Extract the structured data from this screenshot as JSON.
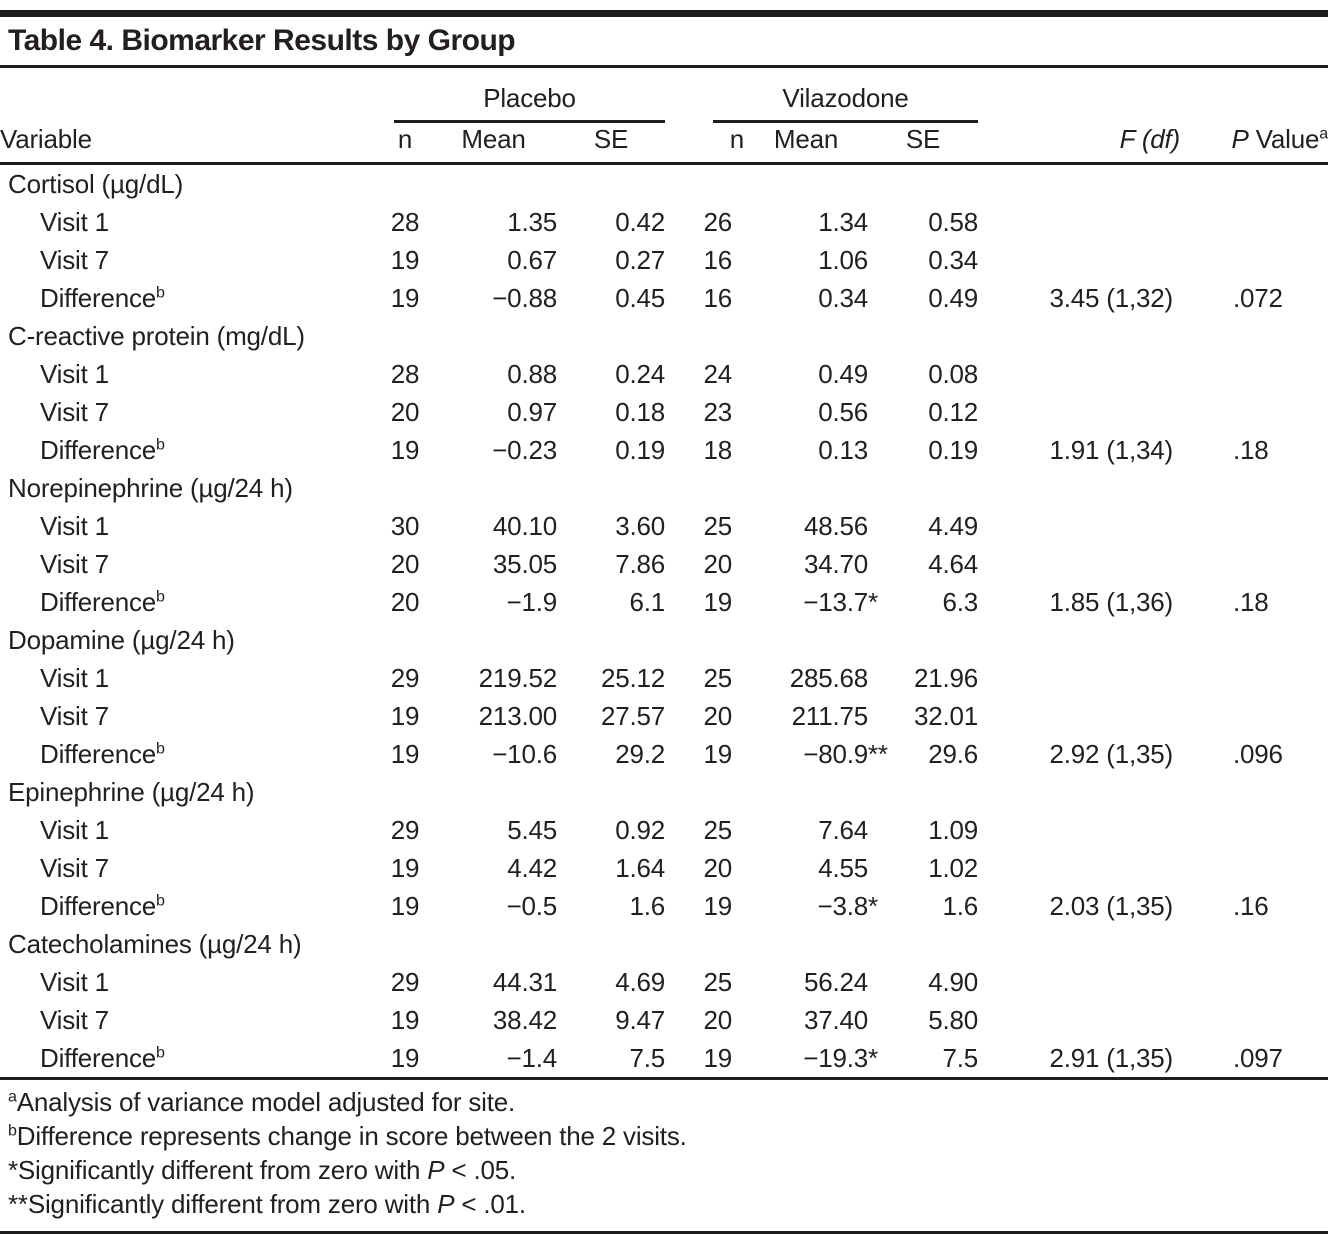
{
  "title": "Table 4. Biomarker Results by Group",
  "columns": {
    "variable": "Variable",
    "group1": "Placebo",
    "group2": "Vilazodone",
    "n": "n",
    "mean": "Mean",
    "se": "SE",
    "f_df": "F (df)",
    "p_label": "P",
    "p_rest": " Value",
    "p_sup": "a"
  },
  "sections": [
    {
      "label": "Cortisol (µg/dL)",
      "rows": [
        {
          "label": "Visit 1",
          "sup": "",
          "pn": "28",
          "pmean": "1.35",
          "pse": "0.42",
          "vn": "26",
          "vmean": "1.34",
          "vast": "",
          "vse": "0.58",
          "f": "",
          "p": ""
        },
        {
          "label": "Visit 7",
          "sup": "",
          "pn": "19",
          "pmean": "0.67",
          "pse": "0.27",
          "vn": "16",
          "vmean": "1.06",
          "vast": "",
          "vse": "0.34",
          "f": "",
          "p": ""
        },
        {
          "label": "Difference",
          "sup": "b",
          "pn": "19",
          "pmean": "−0.88",
          "pse": "0.45",
          "vn": "16",
          "vmean": "0.34",
          "vast": "",
          "vse": "0.49",
          "f": "3.45 (1,32)",
          "p": ".072"
        }
      ]
    },
    {
      "label": "C-reactive protein (mg/dL)",
      "rows": [
        {
          "label": "Visit 1",
          "sup": "",
          "pn": "28",
          "pmean": "0.88",
          "pse": "0.24",
          "vn": "24",
          "vmean": "0.49",
          "vast": "",
          "vse": "0.08",
          "f": "",
          "p": ""
        },
        {
          "label": "Visit 7",
          "sup": "",
          "pn": "20",
          "pmean": "0.97",
          "pse": "0.18",
          "vn": "23",
          "vmean": "0.56",
          "vast": "",
          "vse": "0.12",
          "f": "",
          "p": ""
        },
        {
          "label": "Difference",
          "sup": "b",
          "pn": "19",
          "pmean": "−0.23",
          "pse": "0.19",
          "vn": "18",
          "vmean": "0.13",
          "vast": "",
          "vse": "0.19",
          "f": "1.91 (1,34)",
          "p": ".18"
        }
      ]
    },
    {
      "label": "Norepinephrine (µg/24 h)",
      "rows": [
        {
          "label": "Visit 1",
          "sup": "",
          "pn": "30",
          "pmean": "40.10",
          "pse": "3.60",
          "vn": "25",
          "vmean": "48.56",
          "vast": "",
          "vse": "4.49",
          "f": "",
          "p": ""
        },
        {
          "label": "Visit 7",
          "sup": "",
          "pn": "20",
          "pmean": "35.05",
          "pse": "7.86",
          "vn": "20",
          "vmean": "34.70",
          "vast": "",
          "vse": "4.64",
          "f": "",
          "p": ""
        },
        {
          "label": "Difference",
          "sup": "b",
          "pn": "20",
          "pmean": "−1.9",
          "pse": "6.1",
          "vn": "19",
          "vmean": "−13.7",
          "vast": "*",
          "vse": "6.3",
          "f": "1.85 (1,36)",
          "p": ".18"
        }
      ]
    },
    {
      "label": "Dopamine (µg/24 h)",
      "rows": [
        {
          "label": "Visit 1",
          "sup": "",
          "pn": "29",
          "pmean": "219.52",
          "pse": "25.12",
          "vn": "25",
          "vmean": "285.68",
          "vast": "",
          "vse": "21.96",
          "f": "",
          "p": ""
        },
        {
          "label": "Visit 7",
          "sup": "",
          "pn": "19",
          "pmean": "213.00",
          "pse": "27.57",
          "vn": "20",
          "vmean": "211.75",
          "vast": "",
          "vse": "32.01",
          "f": "",
          "p": ""
        },
        {
          "label": "Difference",
          "sup": "b",
          "pn": "19",
          "pmean": "−10.6",
          "pse": "29.2",
          "vn": "19",
          "vmean": "−80.9",
          "vast": "**",
          "vse": "29.6",
          "f": "2.92 (1,35)",
          "p": ".096"
        }
      ]
    },
    {
      "label": "Epinephrine (µg/24 h)",
      "rows": [
        {
          "label": "Visit 1",
          "sup": "",
          "pn": "29",
          "pmean": "5.45",
          "pse": "0.92",
          "vn": "25",
          "vmean": "7.64",
          "vast": "",
          "vse": "1.09",
          "f": "",
          "p": ""
        },
        {
          "label": "Visit 7",
          "sup": "",
          "pn": "19",
          "pmean": "4.42",
          "pse": "1.64",
          "vn": "20",
          "vmean": "4.55",
          "vast": "",
          "vse": "1.02",
          "f": "",
          "p": ""
        },
        {
          "label": "Difference",
          "sup": "b",
          "pn": "19",
          "pmean": "−0.5",
          "pse": "1.6",
          "vn": "19",
          "vmean": "−3.8",
          "vast": "*",
          "vse": "1.6",
          "f": "2.03 (1,35)",
          "p": ".16"
        }
      ]
    },
    {
      "label": "Catecholamines (µg/24 h)",
      "rows": [
        {
          "label": "Visit 1",
          "sup": "",
          "pn": "29",
          "pmean": "44.31",
          "pse": "4.69",
          "vn": "25",
          "vmean": "56.24",
          "vast": "",
          "vse": "4.90",
          "f": "",
          "p": ""
        },
        {
          "label": "Visit 7",
          "sup": "",
          "pn": "19",
          "pmean": "38.42",
          "pse": "9.47",
          "vn": "20",
          "vmean": "37.40",
          "vast": "",
          "vse": "5.80",
          "f": "",
          "p": ""
        },
        {
          "label": "Difference",
          "sup": "b",
          "pn": "19",
          "pmean": "−1.4",
          "pse": "7.5",
          "vn": "19",
          "vmean": "−19.3",
          "vast": "*",
          "vse": "7.5",
          "f": "2.91 (1,35)",
          "p": ".097"
        }
      ]
    }
  ],
  "footnotes": [
    {
      "sup": "a",
      "pre": "Analysis of variance model adjusted for site.",
      "italic": "",
      "post": ""
    },
    {
      "sup": "b",
      "pre": "Difference represents change in score between the 2 visits.",
      "italic": "",
      "post": ""
    },
    {
      "sup": "",
      "pre": "*Significantly different from zero with ",
      "italic": "P",
      "post": " < .05."
    },
    {
      "sup": "",
      "pre": "**Significantly different from zero with ",
      "italic": "P",
      "post": " < .01."
    }
  ]
}
